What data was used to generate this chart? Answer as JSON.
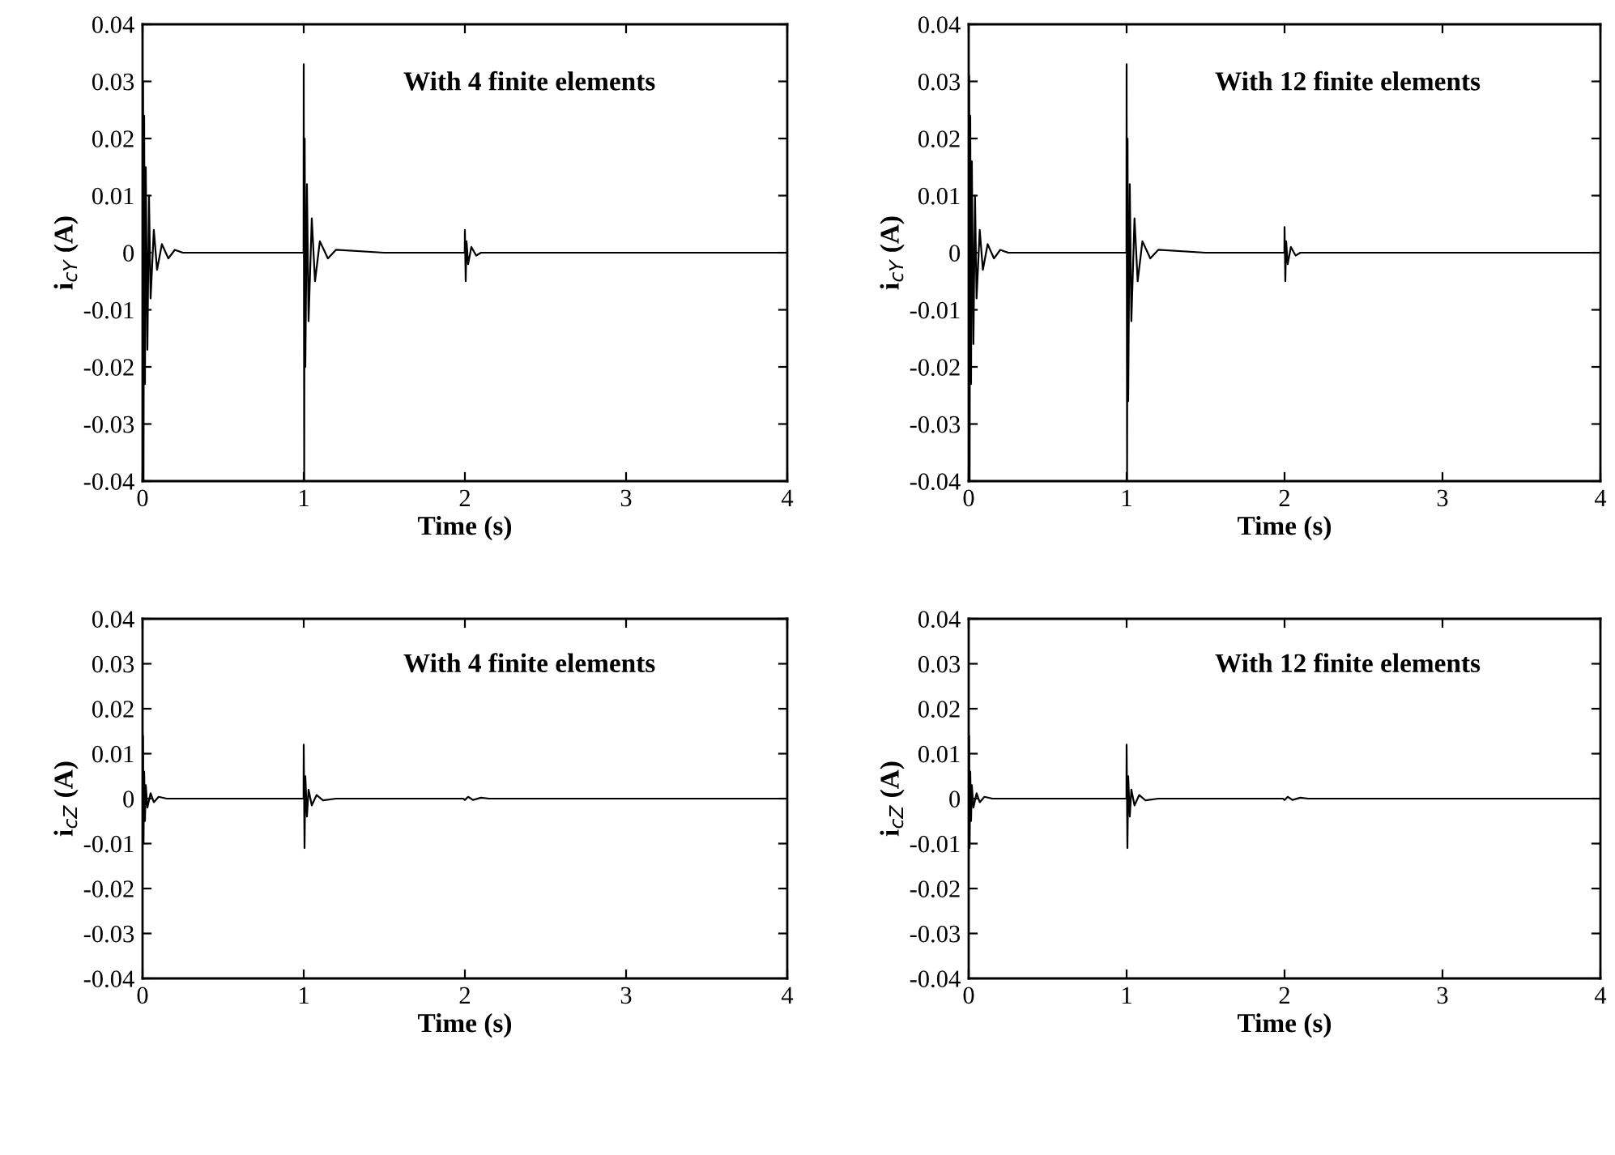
{
  "chart_data": [
    {
      "type": "line",
      "xlabel": "Time (s)",
      "ylabel": "i$_{cY}$ (A)",
      "annotations": [
        "With 4 finite elements"
      ],
      "xlim": [
        0,
        4
      ],
      "ylim": [
        -0.04,
        0.04
      ],
      "xticks": [
        0,
        1,
        2,
        3,
        4
      ],
      "yticks": [
        -0.04,
        -0.03,
        -0.02,
        -0.01,
        0,
        0.01,
        0.02,
        0.03,
        0.04
      ],
      "grid": false,
      "legend": false,
      "marker": "none",
      "line_style": "solid",
      "x": [
        0,
        0.003,
        0.006,
        0.01,
        0.015,
        0.02,
        0.03,
        0.04,
        0.05,
        0.07,
        0.09,
        0.12,
        0.16,
        0.2,
        0.25,
        0.999,
        1.0,
        1.003,
        1.006,
        1.01,
        1.02,
        1.03,
        1.05,
        1.07,
        1.1,
        1.15,
        1.2,
        1.5,
        1.999,
        2.0,
        2.005,
        2.01,
        2.02,
        2.04,
        2.07,
        2.1,
        4
      ],
      "series": [
        {
          "color": "#000000",
          "values": [
            0,
            0.03,
            -0.04,
            0.024,
            -0.023,
            0.015,
            -0.017,
            0.01,
            -0.008,
            0.004,
            -0.003,
            0.0015,
            -0.001,
            0.0005,
            0,
            0,
            0.033,
            -0.04,
            0.02,
            -0.02,
            0.012,
            -0.012,
            0.006,
            -0.005,
            0.002,
            -0.001,
            0.0005,
            0,
            0,
            0.004,
            -0.005,
            0.002,
            -0.002,
            0.001,
            -0.0005,
            0,
            0
          ]
        }
      ]
    },
    {
      "type": "line",
      "xlabel": "Time (s)",
      "ylabel": "i$_{cY}$ (A)",
      "annotations": [
        "With 12 finite elements"
      ],
      "xlim": [
        0,
        4
      ],
      "ylim": [
        -0.04,
        0.04
      ],
      "xticks": [
        0,
        1,
        2,
        3,
        4
      ],
      "yticks": [
        -0.04,
        -0.03,
        -0.02,
        -0.01,
        0,
        0.01,
        0.02,
        0.03,
        0.04
      ],
      "grid": false,
      "legend": false,
      "marker": "none",
      "line_style": "solid",
      "x": [
        0,
        0.003,
        0.006,
        0.01,
        0.015,
        0.02,
        0.03,
        0.04,
        0.05,
        0.07,
        0.09,
        0.12,
        0.16,
        0.2,
        0.25,
        0.999,
        1.0,
        1.003,
        1.006,
        1.01,
        1.02,
        1.03,
        1.05,
        1.07,
        1.1,
        1.15,
        1.2,
        1.5,
        1.999,
        2.0,
        2.005,
        2.01,
        2.02,
        2.04,
        2.07,
        2.1,
        4
      ],
      "series": [
        {
          "color": "#000000",
          "values": [
            0,
            0.031,
            -0.04,
            0.024,
            -0.023,
            0.016,
            -0.016,
            0.01,
            -0.008,
            0.004,
            -0.003,
            0.0015,
            -0.001,
            0.0005,
            0,
            0,
            0.033,
            -0.04,
            0.02,
            -0.026,
            0.012,
            -0.012,
            0.006,
            -0.005,
            0.002,
            -0.001,
            0.0005,
            0,
            0,
            0.0045,
            -0.005,
            0.002,
            -0.002,
            0.001,
            -0.0005,
            0,
            0
          ]
        }
      ]
    },
    {
      "type": "line",
      "xlabel": "Time (s)",
      "ylabel": "i$_{cZ}$ (A)",
      "annotations": [
        "With 4 finite elements"
      ],
      "xlim": [
        0,
        4
      ],
      "ylim": [
        -0.04,
        0.04
      ],
      "xticks": [
        0,
        1,
        2,
        3,
        4
      ],
      "yticks": [
        -0.04,
        -0.03,
        -0.02,
        -0.01,
        0,
        0.01,
        0.02,
        0.03,
        0.04
      ],
      "grid": false,
      "legend": false,
      "marker": "none",
      "line_style": "solid",
      "x": [
        0,
        0.003,
        0.006,
        0.01,
        0.015,
        0.02,
        0.03,
        0.05,
        0.07,
        0.1,
        0.15,
        0.999,
        1.0,
        1.005,
        1.01,
        1.02,
        1.03,
        1.05,
        1.08,
        1.12,
        1.2,
        1.99,
        2.0,
        2.02,
        2.05,
        2.1,
        2.15,
        4
      ],
      "series": [
        {
          "color": "#000000",
          "values": [
            0,
            0.014,
            -0.01,
            0.006,
            -0.005,
            0.003,
            -0.002,
            0.0012,
            -0.0008,
            0.0004,
            0,
            0,
            0.012,
            -0.011,
            0.005,
            -0.004,
            0.002,
            -0.0015,
            0.0008,
            -0.0004,
            0,
            0,
            -0.0003,
            0.0004,
            -0.0003,
            0.0002,
            0,
            0
          ]
        }
      ]
    },
    {
      "type": "line",
      "xlabel": "Time (s)",
      "ylabel": "i$_{cZ}$ (A)",
      "annotations": [
        "With 12 finite elements"
      ],
      "xlim": [
        0,
        4
      ],
      "ylim": [
        -0.04,
        0.04
      ],
      "xticks": [
        0,
        1,
        2,
        3,
        4
      ],
      "yticks": [
        -0.04,
        -0.03,
        -0.02,
        -0.01,
        0,
        0.01,
        0.02,
        0.03,
        0.04
      ],
      "grid": false,
      "legend": false,
      "marker": "none",
      "line_style": "solid",
      "x": [
        0,
        0.003,
        0.006,
        0.01,
        0.015,
        0.02,
        0.03,
        0.05,
        0.07,
        0.1,
        0.15,
        0.999,
        1.0,
        1.005,
        1.01,
        1.02,
        1.03,
        1.05,
        1.08,
        1.12,
        1.2,
        1.99,
        2.0,
        2.02,
        2.05,
        2.1,
        2.15,
        4
      ],
      "series": [
        {
          "color": "#000000",
          "values": [
            0,
            0.014,
            -0.011,
            0.006,
            -0.005,
            0.003,
            -0.002,
            0.0012,
            -0.0008,
            0.0004,
            0,
            0,
            0.012,
            -0.011,
            0.005,
            -0.004,
            0.002,
            -0.0015,
            0.0008,
            -0.0004,
            0,
            0,
            -0.0003,
            0.0004,
            -0.0003,
            0.0002,
            0,
            0
          ]
        }
      ]
    }
  ]
}
